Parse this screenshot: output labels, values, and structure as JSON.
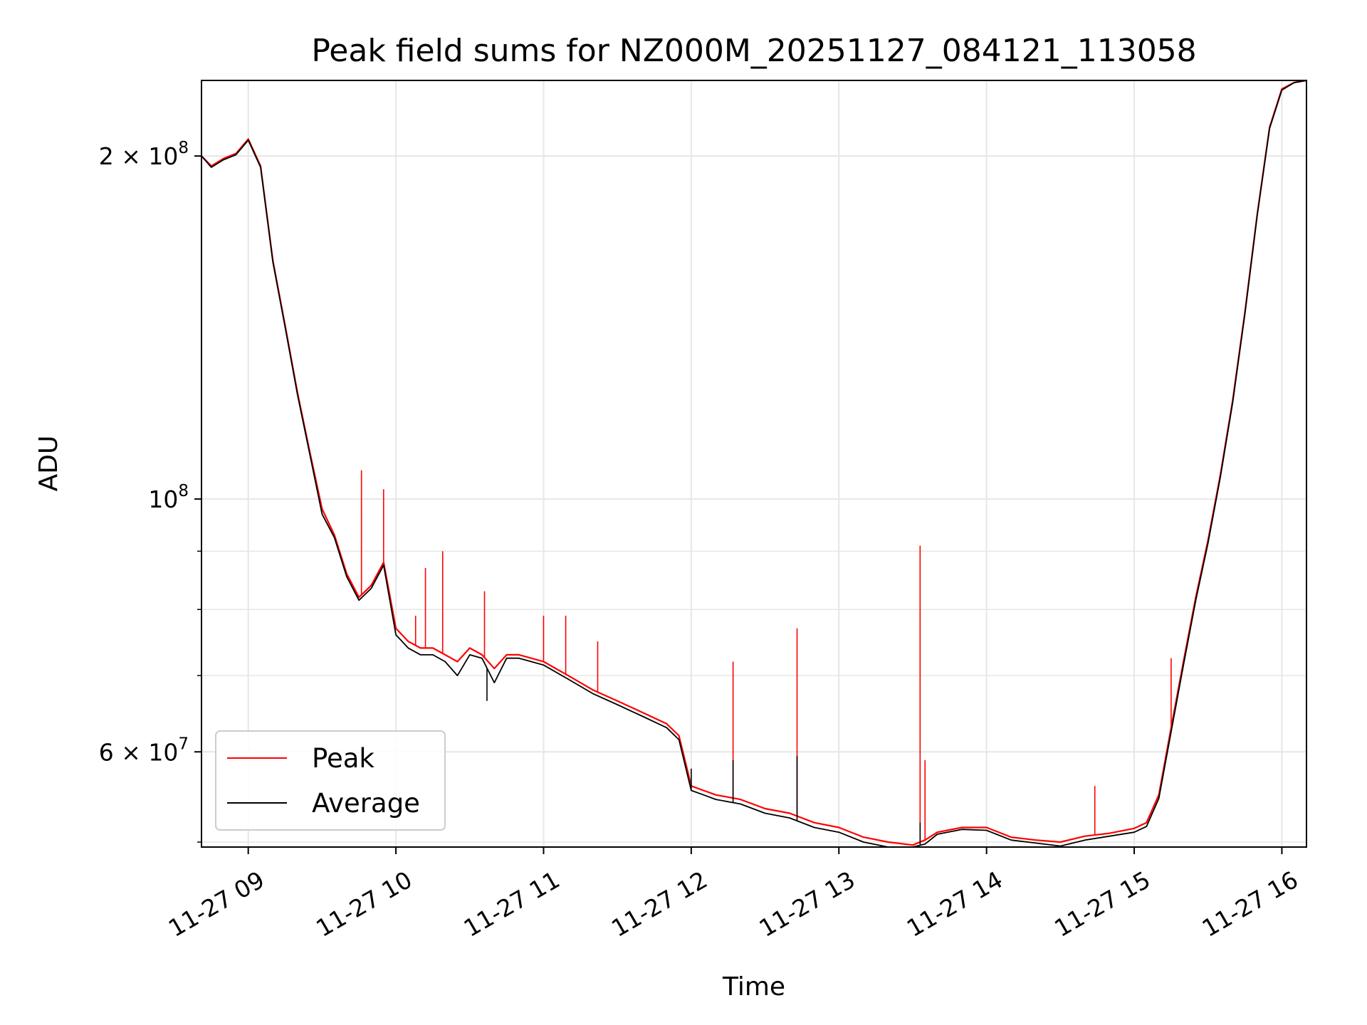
{
  "chart_data": {
    "type": "line",
    "title": "Peak field sums for NZ000M_20251127_084121_113058",
    "xlabel": "Time",
    "ylabel": "ADU",
    "x_ticks": [
      "11-27 09",
      "11-27 10",
      "11-27 11",
      "11-27 12",
      "11-27 13",
      "11-27 14",
      "11-27 15",
      "11-27 16"
    ],
    "y_ticks": [
      {
        "label_base": "6",
        "label_mid": " × 10",
        "label_exp": "7",
        "value": 60000000
      },
      {
        "label_base": "",
        "label_mid": "10",
        "label_exp": "8",
        "value": 100000000
      },
      {
        "label_base": "2",
        "label_mid": " × 10",
        "label_exp": "8",
        "value": 200000000
      }
    ],
    "y_scale": "log",
    "ylim": [
      49500000,
      233000000
    ],
    "xlim": [
      "2025-11-27 08:41",
      "2025-11-27 16:10"
    ],
    "grid": true,
    "legend_position": "lower-left",
    "colors": {
      "peak": "#ff0000",
      "average": "#000000"
    },
    "series": [
      {
        "name": "Peak",
        "color": "#ff0000",
        "x": [
          "08:41",
          "08:45",
          "08:50",
          "08:55",
          "09:00",
          "09:05",
          "09:10",
          "09:15",
          "09:20",
          "09:25",
          "09:30",
          "09:35",
          "09:40",
          "09:45",
          "09:50",
          "09:55",
          "10:00",
          "10:05",
          "10:10",
          "10:15",
          "10:20",
          "10:25",
          "10:30",
          "10:35",
          "10:40",
          "10:45",
          "10:50",
          "10:55",
          "11:00",
          "11:10",
          "11:20",
          "11:30",
          "11:40",
          "11:50",
          "11:55",
          "12:00",
          "12:05",
          "12:10",
          "12:20",
          "12:30",
          "12:40",
          "12:50",
          "13:00",
          "13:10",
          "13:20",
          "13:30",
          "13:35",
          "13:40",
          "13:50",
          "14:00",
          "14:10",
          "14:20",
          "14:30",
          "14:40",
          "14:50",
          "15:00",
          "15:05",
          "15:10",
          "15:15",
          "15:20",
          "15:25",
          "15:30",
          "15:35",
          "15:40",
          "15:45",
          "15:50",
          "15:55",
          "16:00",
          "16:05",
          "16:10"
        ],
        "values": [
          200000000,
          196000000,
          199000000,
          201000000,
          207000000,
          196000000,
          162000000,
          142000000,
          124000000,
          110000000,
          98000000,
          93000000,
          86000000,
          82000000,
          84000000,
          88000000,
          77000000,
          75000000,
          74000000,
          74000000,
          73000000,
          72000000,
          74000000,
          73000000,
          71000000,
          73000000,
          73000000,
          72500000,
          72000000,
          70000000,
          68000000,
          66500000,
          65000000,
          63500000,
          62000000,
          56000000,
          55500000,
          55000000,
          54500000,
          53500000,
          53000000,
          52000000,
          51500000,
          50500000,
          50000000,
          49700000,
          50200000,
          51000000,
          51500000,
          51500000,
          50500000,
          50200000,
          50000000,
          50600000,
          50900000,
          51400000,
          52000000,
          55000000,
          63000000,
          72000000,
          82000000,
          92000000,
          105000000,
          122000000,
          146000000,
          178000000,
          212000000,
          229000000,
          232000000,
          233000000
        ],
        "spikes": [
          {
            "x": "09:46",
            "value": 106000000
          },
          {
            "x": "09:55",
            "value": 102000000
          },
          {
            "x": "10:08",
            "value": 79000000
          },
          {
            "x": "10:12",
            "value": 87000000
          },
          {
            "x": "10:19",
            "value": 90000000
          },
          {
            "x": "10:36",
            "value": 83000000
          },
          {
            "x": "11:00",
            "value": 79000000
          },
          {
            "x": "11:09",
            "value": 79000000
          },
          {
            "x": "11:22",
            "value": 75000000
          },
          {
            "x": "12:17",
            "value": 72000000
          },
          {
            "x": "12:43",
            "value": 77000000
          },
          {
            "x": "13:33",
            "value": 91000000
          },
          {
            "x": "13:35",
            "value": 59000000
          },
          {
            "x": "14:44",
            "value": 56000000
          },
          {
            "x": "15:15",
            "value": 72500000
          }
        ]
      },
      {
        "name": "Average",
        "color": "#000000",
        "x": [
          "08:41",
          "08:45",
          "08:50",
          "08:55",
          "09:00",
          "09:05",
          "09:10",
          "09:15",
          "09:20",
          "09:25",
          "09:30",
          "09:35",
          "09:40",
          "09:45",
          "09:50",
          "09:55",
          "10:00",
          "10:05",
          "10:10",
          "10:15",
          "10:20",
          "10:25",
          "10:30",
          "10:35",
          "10:40",
          "10:45",
          "10:50",
          "10:55",
          "11:00",
          "11:10",
          "11:20",
          "11:30",
          "11:40",
          "11:50",
          "11:55",
          "12:00",
          "12:05",
          "12:10",
          "12:20",
          "12:30",
          "12:40",
          "12:50",
          "13:00",
          "13:10",
          "13:20",
          "13:30",
          "13:35",
          "13:40",
          "13:50",
          "14:00",
          "14:10",
          "14:20",
          "14:30",
          "14:40",
          "14:50",
          "15:00",
          "15:05",
          "15:10",
          "15:15",
          "15:20",
          "15:25",
          "15:30",
          "15:35",
          "15:40",
          "15:45",
          "15:50",
          "15:55",
          "16:00",
          "16:05",
          "16:10"
        ],
        "values": [
          200000000,
          195500000,
          198500000,
          200500000,
          206500000,
          195500000,
          161500000,
          141500000,
          123500000,
          109500000,
          97000000,
          92500000,
          85500000,
          81500000,
          83500000,
          87500000,
          76000000,
          74000000,
          73000000,
          73000000,
          72000000,
          70000000,
          73000000,
          72500000,
          69000000,
          72500000,
          72500000,
          72000000,
          71500000,
          69500000,
          67500000,
          66000000,
          64500000,
          63000000,
          61500000,
          55500000,
          55000000,
          54500000,
          54000000,
          53000000,
          52500000,
          51500000,
          51000000,
          50000000,
          49500000,
          49500000,
          49800000,
          50800000,
          51300000,
          51200000,
          50200000,
          49900000,
          49600000,
          50200000,
          50600000,
          51000000,
          51600000,
          54600000,
          62500000,
          71500000,
          81500000,
          91500000,
          104500000,
          121500000,
          145500000,
          177500000,
          211500000,
          228500000,
          232000000,
          233000000
        ],
        "spikes": [
          {
            "x": "10:37",
            "value": 66500000
          },
          {
            "x": "12:00",
            "value": 58000000
          },
          {
            "x": "12:17",
            "value": 59000000
          },
          {
            "x": "12:43",
            "value": 59500000
          },
          {
            "x": "13:33",
            "value": 52000000
          }
        ]
      }
    ]
  }
}
